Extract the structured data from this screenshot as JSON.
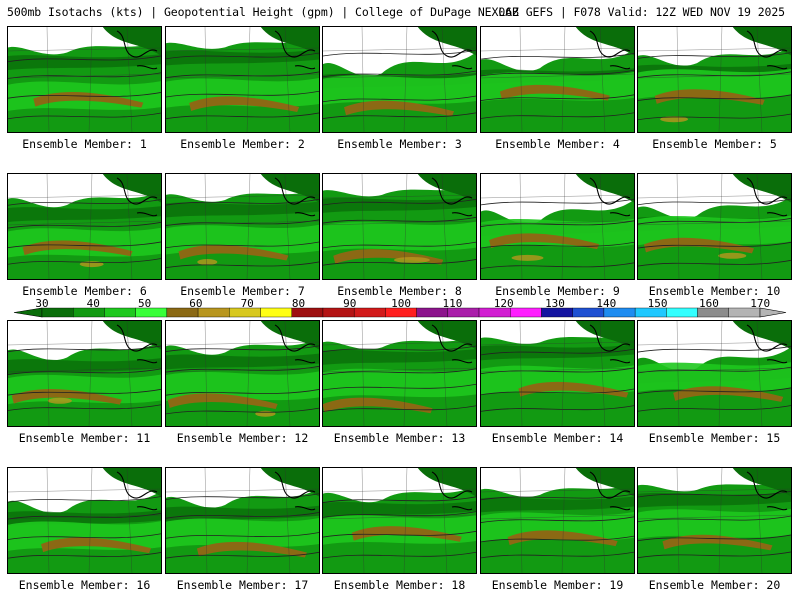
{
  "title": {
    "left": "500mb Isotachs (kts) | Geopotential Height (gpm) | College of DuPage NEXLAB",
    "right": "06Z GEFS | F078 Valid: 12Z WED NOV 19 2025"
  },
  "members": [
    {
      "label": "Ensemble Member: 1"
    },
    {
      "label": "Ensemble Member: 2"
    },
    {
      "label": "Ensemble Member: 3"
    },
    {
      "label": "Ensemble Member: 4"
    },
    {
      "label": "Ensemble Member: 5"
    },
    {
      "label": "Ensemble Member: 6"
    },
    {
      "label": "Ensemble Member: 7"
    },
    {
      "label": "Ensemble Member: 8"
    },
    {
      "label": "Ensemble Member: 9"
    },
    {
      "label": "Ensemble Member: 10"
    },
    {
      "label": "Ensemble Member: 11"
    },
    {
      "label": "Ensemble Member: 12"
    },
    {
      "label": "Ensemble Member: 13"
    },
    {
      "label": "Ensemble Member: 14"
    },
    {
      "label": "Ensemble Member: 15"
    },
    {
      "label": "Ensemble Member: 16"
    },
    {
      "label": "Ensemble Member: 17"
    },
    {
      "label": "Ensemble Member: 18"
    },
    {
      "label": "Ensemble Member: 19"
    },
    {
      "label": "Ensemble Member: 20"
    }
  ],
  "colorbar": {
    "labels": [
      "30",
      "40",
      "50",
      "60",
      "70",
      "80",
      "90",
      "100",
      "110",
      "120",
      "130",
      "140",
      "150",
      "160",
      "170"
    ],
    "colors": [
      "#0a6e0a",
      "#129a12",
      "#1ec81e",
      "#39ff39",
      "#8b6914",
      "#b8961e",
      "#d8c81e",
      "#ffff14",
      "#9e1010",
      "#b41414",
      "#d21a1a",
      "#ff1e1e",
      "#8c148c",
      "#aa1eaa",
      "#d21ed2",
      "#ff1eff",
      "#1414a0",
      "#1e50d2",
      "#1e8cf0",
      "#1ec8ff",
      "#32ffff",
      "#8c8c8c",
      "#b4b4b4"
    ]
  },
  "map_colors": {
    "dark_green": "#0a6e0a",
    "green": "#129a12",
    "bright_green": "#1ec81e",
    "brown": "#8b6914",
    "gold": "#b8961e",
    "land_white": "#ffffff"
  }
}
